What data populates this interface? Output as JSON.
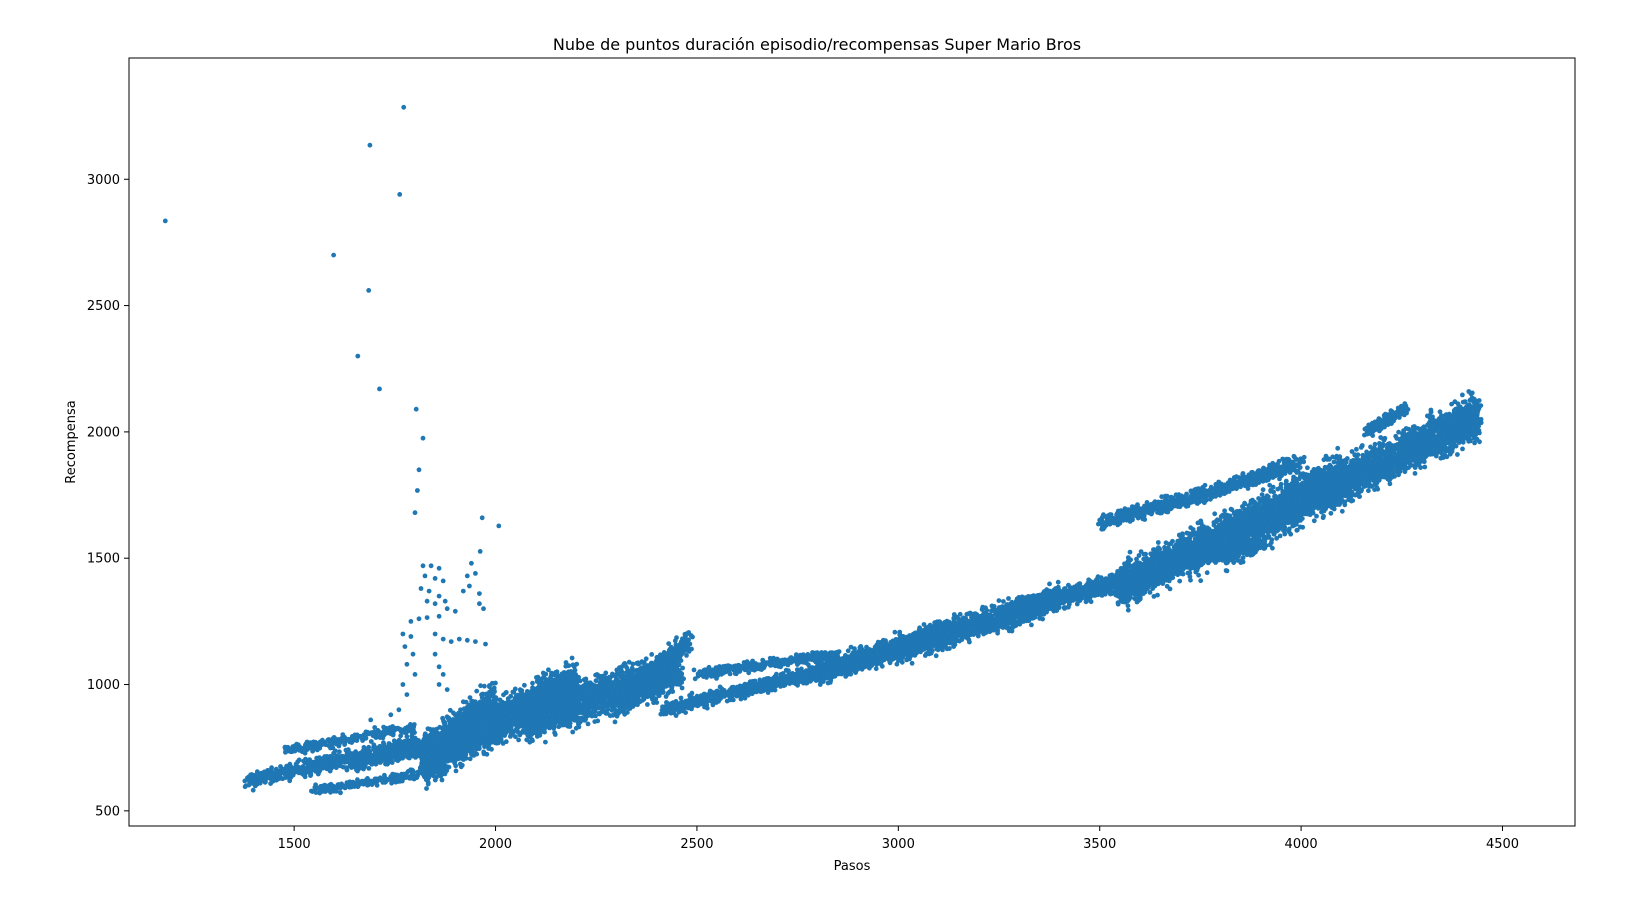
{
  "chart_data": {
    "type": "scatter",
    "title": "Nube de puntos duración episodio/recompensas Super Mario Bros",
    "xlabel": "Pasos",
    "ylabel": "Recompensa",
    "xlim": [
      1090,
      4680
    ],
    "ylim": [
      440,
      3480
    ],
    "x_ticks": [
      1500,
      2000,
      2500,
      3000,
      3500,
      4000,
      4500
    ],
    "y_ticks": [
      500,
      1000,
      1500,
      2000,
      2500,
      3000
    ],
    "grid": false,
    "legend": "none",
    "color": "#1f77b4",
    "outliers": [
      [
        1180,
        2835
      ],
      [
        1772,
        3285
      ],
      [
        1688,
        3135
      ],
      [
        1762,
        2940
      ],
      [
        1598,
        2700
      ],
      [
        1685,
        2560
      ],
      [
        1658,
        2300
      ],
      [
        1712,
        2170
      ],
      [
        1803,
        2090
      ],
      [
        1820,
        1975
      ],
      [
        1810,
        1850
      ],
      [
        1806,
        1768
      ],
      [
        1800,
        1680
      ],
      [
        1967,
        1660
      ],
      [
        2008,
        1628
      ],
      [
        1962,
        1527
      ]
    ],
    "spike_points": [
      [
        1820,
        1470
      ],
      [
        1840,
        1470
      ],
      [
        1860,
        1460
      ],
      [
        1825,
        1430
      ],
      [
        1850,
        1420
      ],
      [
        1870,
        1410
      ],
      [
        1815,
        1380
      ],
      [
        1835,
        1370
      ],
      [
        1860,
        1350
      ],
      [
        1830,
        1330
      ],
      [
        1850,
        1320
      ],
      [
        1875,
        1330
      ],
      [
        1940,
        1480
      ],
      [
        1930,
        1430
      ],
      [
        1950,
        1440
      ],
      [
        1935,
        1390
      ],
      [
        1920,
        1370
      ],
      [
        1960,
        1360
      ],
      [
        1880,
        1300
      ],
      [
        1900,
        1290
      ],
      [
        1960,
        1320
      ],
      [
        1970,
        1300
      ],
      [
        1790,
        1250
      ],
      [
        1810,
        1260
      ],
      [
        1830,
        1265
      ],
      [
        1860,
        1270
      ],
      [
        1770,
        1200
      ],
      [
        1790,
        1190
      ],
      [
        1775,
        1150
      ],
      [
        1795,
        1120
      ],
      [
        1780,
        1080
      ],
      [
        1800,
        1040
      ],
      [
        1770,
        1000
      ],
      [
        1780,
        960
      ],
      [
        1760,
        900
      ],
      [
        1740,
        880
      ],
      [
        1850,
        1200
      ],
      [
        1870,
        1180
      ],
      [
        1890,
        1170
      ],
      [
        1910,
        1180
      ],
      [
        1930,
        1175
      ],
      [
        1950,
        1170
      ],
      [
        1975,
        1160
      ],
      [
        1850,
        1120
      ],
      [
        1860,
        1070
      ],
      [
        1870,
        1040
      ],
      [
        1860,
        1000
      ],
      [
        1880,
        980
      ],
      [
        1690,
        860
      ],
      [
        1700,
        830
      ]
    ],
    "band_segments": [
      {
        "x": [
          1380,
          1820
        ],
        "y": [
          618,
          770
        ],
        "spread": 40,
        "count": 700
      },
      {
        "x": [
          1480,
          1800
        ],
        "y": [
          740,
          830
        ],
        "spread": 25,
        "count": 250
      },
      {
        "x": [
          1550,
          1870
        ],
        "y": [
          580,
          660
        ],
        "spread": 25,
        "count": 250
      },
      {
        "x": [
          1640,
          1880
        ],
        "y": [
          680,
          760
        ],
        "spread": 35,
        "count": 300
      },
      {
        "x": [
          1820,
          2000
        ],
        "y": [
          700,
          900
        ],
        "spread": 130,
        "count": 1500
      },
      {
        "x": [
          1900,
          2200
        ],
        "y": [
          770,
          1000
        ],
        "spread": 120,
        "count": 1800
      },
      {
        "x": [
          2080,
          2460
        ],
        "y": [
          860,
          1060
        ],
        "spread": 110,
        "count": 1700
      },
      {
        "x": [
          2300,
          2480
        ],
        "y": [
          900,
          1170
        ],
        "spread": 60,
        "count": 500
      },
      {
        "x": [
          2420,
          2900
        ],
        "y": [
          900,
          1090
        ],
        "spread": 40,
        "count": 800
      },
      {
        "x": [
          2500,
          2850
        ],
        "y": [
          1040,
          1120
        ],
        "spread": 25,
        "count": 400
      },
      {
        "x": [
          2800,
          3100
        ],
        "y": [
          1040,
          1200
        ],
        "spread": 60,
        "count": 900
      },
      {
        "x": [
          3000,
          3400
        ],
        "y": [
          1140,
          1340
        ],
        "spread": 75,
        "count": 1300
      },
      {
        "x": [
          3300,
          3580
        ],
        "y": [
          1300,
          1420
        ],
        "spread": 50,
        "count": 800
      },
      {
        "x": [
          3550,
          3850
        ],
        "y": [
          1380,
          1620
        ],
        "spread": 110,
        "count": 1600
      },
      {
        "x": [
          3800,
          4100
        ],
        "y": [
          1560,
          1820
        ],
        "spread": 130,
        "count": 1900
      },
      {
        "x": [
          4050,
          4440
        ],
        "y": [
          1760,
          2060
        ],
        "spread": 110,
        "count": 2000
      },
      {
        "x": [
          3500,
          3700
        ],
        "y": [
          1640,
          1730
        ],
        "spread": 40,
        "count": 300
      },
      {
        "x": [
          3700,
          4000
        ],
        "y": [
          1720,
          1880
        ],
        "spread": 40,
        "count": 400
      },
      {
        "x": [
          4160,
          4260
        ],
        "y": [
          2000,
          2090
        ],
        "spread": 30,
        "count": 200
      },
      {
        "x": [
          3600,
          3920
        ],
        "y": [
          1430,
          1560
        ],
        "spread": 30,
        "count": 300
      }
    ]
  }
}
